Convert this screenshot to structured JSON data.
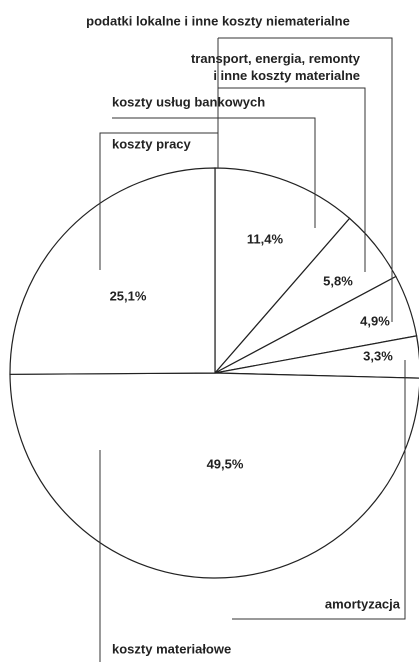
{
  "chart_data": {
    "type": "pie",
    "categories": [
      "koszty usług bankowych",
      "transport, energia, remonty i inne koszty materialne",
      "podatki lokalne i inne koszty niematerialne",
      "amortyzacja",
      "koszty materiałowe",
      "koszty pracy"
    ],
    "values": [
      11.4,
      5.8,
      4.9,
      3.3,
      49.5,
      25.1
    ],
    "value_labels": [
      "11,4%",
      "5,8%",
      "4,9%",
      "3,3%",
      "49,5%",
      "25,1%"
    ],
    "color": "#ffffff"
  }
}
